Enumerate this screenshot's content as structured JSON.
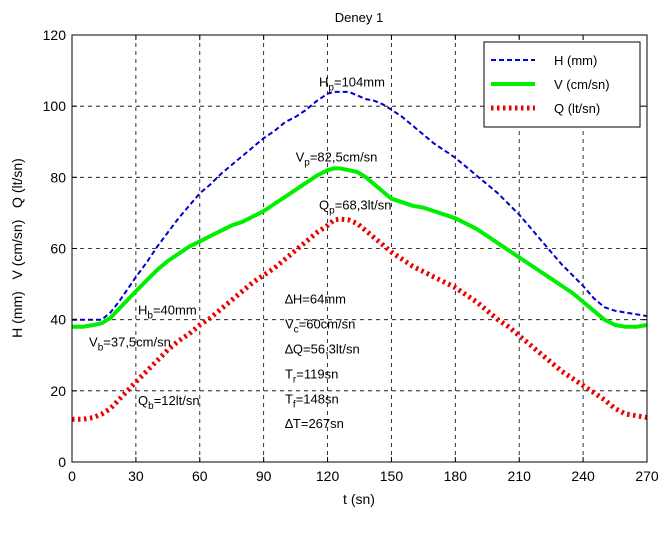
{
  "chart_data": {
    "type": "line",
    "title": "Deney 1",
    "xlabel": "t (sn)",
    "ylabel": "H (mm)   V (cm/sn)   Q (lt/sn)",
    "xlim": [
      0,
      270
    ],
    "ylim": [
      0,
      120
    ],
    "xticks": [
      0,
      30,
      60,
      90,
      120,
      150,
      180,
      210,
      240,
      270
    ],
    "yticks": [
      0,
      20,
      40,
      60,
      80,
      100,
      120
    ],
    "grid": true,
    "legend_position": "top-right",
    "series": [
      {
        "name": "H (mm)",
        "color": "#0000cc",
        "style": "dashed",
        "x": [
          0,
          5,
          10,
          14,
          18,
          22,
          26,
          30,
          35,
          40,
          45,
          50,
          55,
          60,
          65,
          70,
          75,
          80,
          85,
          90,
          95,
          100,
          105,
          110,
          115,
          120,
          123,
          126,
          130,
          134,
          138,
          142,
          146,
          150,
          155,
          160,
          165,
          170,
          175,
          180,
          185,
          190,
          195,
          200,
          205,
          210,
          215,
          220,
          225,
          230,
          235,
          240,
          245,
          250,
          255,
          260,
          265,
          270
        ],
        "y": [
          40,
          40,
          40,
          40,
          42,
          45,
          48.5,
          52,
          56,
          60.5,
          64.5,
          68.5,
          72,
          75.5,
          78,
          81,
          83.5,
          86,
          88.5,
          91,
          93,
          95.5,
          97,
          99,
          101.5,
          103.5,
          104,
          104,
          104,
          103,
          102,
          101.5,
          100.5,
          99,
          97,
          94.5,
          92,
          89.5,
          87.5,
          85.5,
          83,
          80.5,
          78,
          75.5,
          72.5,
          69.5,
          66,
          62.5,
          59,
          55.5,
          52.5,
          49.5,
          46,
          43.5,
          42.5,
          42,
          41.5,
          41
        ]
      },
      {
        "name": "V (cm/sn)",
        "color": "#00ee00",
        "style": "solid",
        "x": [
          0,
          5,
          10,
          14,
          18,
          22,
          26,
          30,
          35,
          40,
          45,
          50,
          55,
          60,
          65,
          70,
          75,
          80,
          85,
          90,
          95,
          100,
          105,
          110,
          115,
          120,
          123,
          126,
          130,
          134,
          138,
          142,
          146,
          150,
          155,
          160,
          165,
          170,
          175,
          180,
          185,
          190,
          195,
          200,
          205,
          210,
          215,
          220,
          225,
          230,
          235,
          240,
          245,
          250,
          255,
          260,
          265,
          270
        ],
        "y": [
          38,
          38,
          38.5,
          39,
          40.5,
          43,
          45.5,
          48,
          51,
          54,
          56.5,
          58.5,
          60.5,
          62,
          63.5,
          65,
          66.5,
          67.5,
          69,
          70.5,
          72.5,
          74.5,
          76.5,
          78.5,
          80.5,
          82,
          82.5,
          82.5,
          82,
          81.5,
          80,
          78,
          76,
          74,
          73,
          72,
          71.5,
          70.5,
          69.5,
          68.5,
          67,
          65.5,
          63.5,
          61.5,
          59.5,
          57.5,
          55.5,
          53.5,
          51.5,
          49.5,
          47.5,
          45,
          42.5,
          40,
          38.5,
          38,
          38,
          38.5
        ]
      },
      {
        "name": "Q (lt/sn)",
        "color": "#ee0000",
        "style": "dotted",
        "x": [
          0,
          5,
          10,
          14,
          18,
          22,
          26,
          30,
          35,
          40,
          45,
          50,
          55,
          60,
          65,
          70,
          75,
          80,
          85,
          90,
          95,
          100,
          105,
          110,
          115,
          120,
          123,
          126,
          130,
          134,
          138,
          142,
          146,
          150,
          155,
          160,
          165,
          170,
          175,
          180,
          185,
          190,
          195,
          200,
          205,
          210,
          215,
          220,
          225,
          230,
          235,
          240,
          245,
          250,
          255,
          260,
          265,
          270
        ],
        "y": [
          12,
          12,
          12.5,
          13.5,
          15,
          17.5,
          20,
          22.5,
          25.5,
          28.5,
          31.5,
          34,
          36,
          38.5,
          40.5,
          43,
          45.5,
          48,
          50.5,
          52.5,
          54.5,
          57,
          59.5,
          62,
          64.5,
          66.5,
          68,
          68.3,
          68,
          67,
          65,
          63,
          61,
          59,
          57,
          55,
          53.5,
          52,
          50.5,
          49,
          47,
          45,
          42.5,
          40,
          38,
          35.5,
          33,
          30.5,
          28,
          25.5,
          23.5,
          21.5,
          19.5,
          17.5,
          15,
          13.5,
          13,
          12.5
        ]
      }
    ],
    "annotations": [
      {
        "base": "H",
        "sub": "p",
        "rest": "=104mm",
        "x": 116,
        "y": 105.5
      },
      {
        "base": "V",
        "sub": "p",
        "rest": "=82,5cm/sn",
        "x": 105,
        "y": 84.5
      },
      {
        "base": "Q",
        "sub": "p",
        "rest": "=68,3lt/sn",
        "x": 116,
        "y": 71
      },
      {
        "base": "H",
        "sub": "b",
        "rest": "=40mm",
        "x": 31,
        "y": 41.5
      },
      {
        "base": "V",
        "sub": "b",
        "rest": "=37,5cm/sn",
        "x": 8,
        "y": 32.5
      },
      {
        "base": "Q",
        "sub": "b",
        "rest": "=12lt/sn",
        "x": 31,
        "y": 16
      },
      {
        "base": "∆H=64mm",
        "sub": "",
        "rest": "",
        "x": 100,
        "y": 44.5
      },
      {
        "base": "V",
        "sub": "c",
        "rest": "=60cm/sn",
        "x": 100,
        "y": 37.5
      },
      {
        "base": "∆Q=56,3lt/sn",
        "sub": "",
        "rest": "",
        "x": 100,
        "y": 30.5
      },
      {
        "base": "T",
        "sub": "r",
        "rest": "=119sn",
        "x": 100,
        "y": 23.5
      },
      {
        "base": "T",
        "sub": "f",
        "rest": "=148sn",
        "x": 100,
        "y": 16.5
      },
      {
        "base": "∆T=267sn",
        "sub": "",
        "rest": "",
        "x": 100,
        "y": 9.5
      }
    ]
  }
}
